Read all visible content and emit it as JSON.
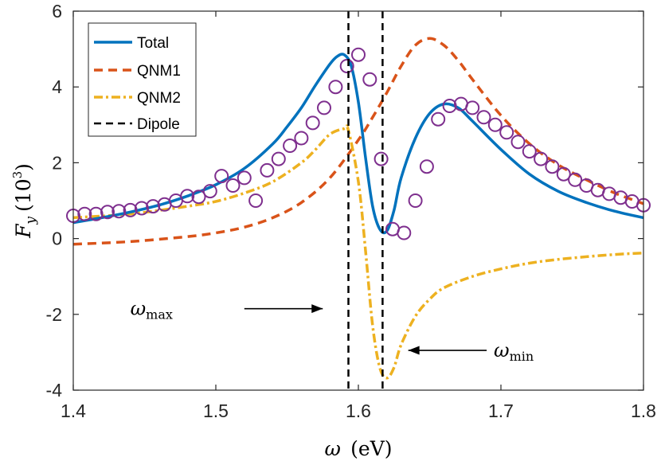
{
  "chart_data": {
    "type": "line",
    "xlabel_symbol": "ω",
    "xlabel_unit": "(eV)",
    "ylabel_symbol": "F",
    "ylabel_subscript": "y",
    "ylabel_unit": "(10",
    "ylabel_exp": "3",
    "ylabel_close": ")",
    "xlim": [
      1.4,
      1.8
    ],
    "ylim": [
      -4,
      6
    ],
    "x_ticks": [
      1.4,
      1.5,
      1.6,
      1.7,
      1.8
    ],
    "x_tick_labels": [
      "1.4",
      "1.5",
      "1.6",
      "1.7",
      "1.8"
    ],
    "y_ticks": [
      -4,
      -2,
      0,
      2,
      4,
      6
    ],
    "y_tick_labels": [
      "-4",
      "-2",
      "0",
      "2",
      "4",
      "6"
    ],
    "legend_position": "top-left",
    "legend": [
      "Total",
      "QNM1",
      "QNM2",
      "Dipole"
    ],
    "colors": {
      "total": "#0072BD",
      "qnm1": "#D95319",
      "qnm2": "#EDB120",
      "dipole": "#000000",
      "markers": "#7E2F8E"
    },
    "series": [
      {
        "name": "Total",
        "style": "solid",
        "x": [
          1.4,
          1.42,
          1.44,
          1.46,
          1.48,
          1.5,
          1.52,
          1.54,
          1.55,
          1.56,
          1.57,
          1.58,
          1.585,
          1.59,
          1.595,
          1.6,
          1.605,
          1.61,
          1.615,
          1.62,
          1.625,
          1.63,
          1.64,
          1.65,
          1.66,
          1.67,
          1.68,
          1.7,
          1.72,
          1.74,
          1.76,
          1.78,
          1.8
        ],
        "values": [
          0.42,
          0.55,
          0.7,
          0.88,
          1.12,
          1.42,
          1.85,
          2.5,
          2.95,
          3.45,
          4.05,
          4.6,
          4.8,
          4.85,
          4.55,
          3.6,
          2.15,
          0.85,
          0.25,
          0.2,
          0.75,
          1.6,
          2.65,
          3.3,
          3.55,
          3.45,
          3.1,
          2.35,
          1.7,
          1.25,
          0.95,
          0.72,
          0.55
        ]
      },
      {
        "name": "QNM1",
        "style": "dashed",
        "x": [
          1.4,
          1.44,
          1.48,
          1.5,
          1.52,
          1.54,
          1.56,
          1.58,
          1.6,
          1.61,
          1.62,
          1.63,
          1.64,
          1.65,
          1.66,
          1.67,
          1.68,
          1.7,
          1.72,
          1.74,
          1.76,
          1.78,
          1.8
        ],
        "values": [
          -0.15,
          -0.08,
          0.05,
          0.15,
          0.3,
          0.55,
          0.95,
          1.6,
          2.6,
          3.2,
          3.85,
          4.55,
          5.1,
          5.28,
          5.1,
          4.7,
          4.2,
          3.25,
          2.5,
          1.95,
          1.55,
          1.2,
          0.92
        ]
      },
      {
        "name": "QNM2",
        "style": "dashdot",
        "x": [
          1.4,
          1.44,
          1.48,
          1.5,
          1.52,
          1.54,
          1.56,
          1.57,
          1.58,
          1.59,
          1.593,
          1.6,
          1.605,
          1.61,
          1.615,
          1.62,
          1.625,
          1.63,
          1.64,
          1.65,
          1.66,
          1.68,
          1.7,
          1.72,
          1.74,
          1.76,
          1.78,
          1.8
        ],
        "values": [
          0.55,
          0.65,
          0.85,
          0.98,
          1.2,
          1.5,
          2.0,
          2.35,
          2.75,
          2.9,
          2.85,
          1.5,
          -0.3,
          -2.3,
          -3.4,
          -3.68,
          -3.4,
          -2.8,
          -2.05,
          -1.6,
          -1.3,
          -1.0,
          -0.8,
          -0.65,
          -0.55,
          -0.48,
          -0.42,
          -0.38
        ]
      },
      {
        "name": "Dipole",
        "style": "vertical-dashed",
        "x": [
          1.593,
          1.617
        ]
      },
      {
        "name": "Markers",
        "style": "circle",
        "x": [
          1.4,
          1.408,
          1.416,
          1.424,
          1.432,
          1.44,
          1.448,
          1.456,
          1.464,
          1.472,
          1.48,
          1.488,
          1.496,
          1.504,
          1.512,
          1.52,
          1.528,
          1.536,
          1.544,
          1.552,
          1.56,
          1.568,
          1.576,
          1.584,
          1.592,
          1.6,
          1.608,
          1.616,
          1.624,
          1.632,
          1.64,
          1.648,
          1.656,
          1.664,
          1.672,
          1.68,
          1.688,
          1.696,
          1.704,
          1.712,
          1.72,
          1.728,
          1.736,
          1.744,
          1.752,
          1.76,
          1.768,
          1.776,
          1.784,
          1.792,
          1.8
        ],
        "values": [
          0.6,
          0.65,
          0.65,
          0.7,
          0.72,
          0.75,
          0.8,
          0.85,
          0.9,
          1.0,
          1.12,
          1.1,
          1.25,
          1.65,
          1.4,
          1.6,
          1.0,
          1.8,
          2.1,
          2.45,
          2.65,
          3.05,
          3.45,
          4.0,
          4.55,
          4.85,
          4.2,
          2.1,
          0.25,
          0.15,
          1.0,
          1.9,
          3.15,
          3.5,
          3.55,
          3.45,
          3.2,
          3.0,
          2.8,
          2.55,
          2.3,
          2.1,
          1.9,
          1.7,
          1.55,
          1.4,
          1.28,
          1.18,
          1.08,
          0.98,
          0.88
        ]
      }
    ],
    "annotations": [
      {
        "label_symbol": "ω",
        "label_sub": "max",
        "direction": "right",
        "x_start": 1.52,
        "x_end": 1.575,
        "y": -1.85,
        "label_x": 1.44
      },
      {
        "label_symbol": "ω",
        "label_sub": "min",
        "direction": "left",
        "x_start": 1.69,
        "x_end": 1.635,
        "y": -2.95,
        "label_x": 1.695
      }
    ]
  }
}
